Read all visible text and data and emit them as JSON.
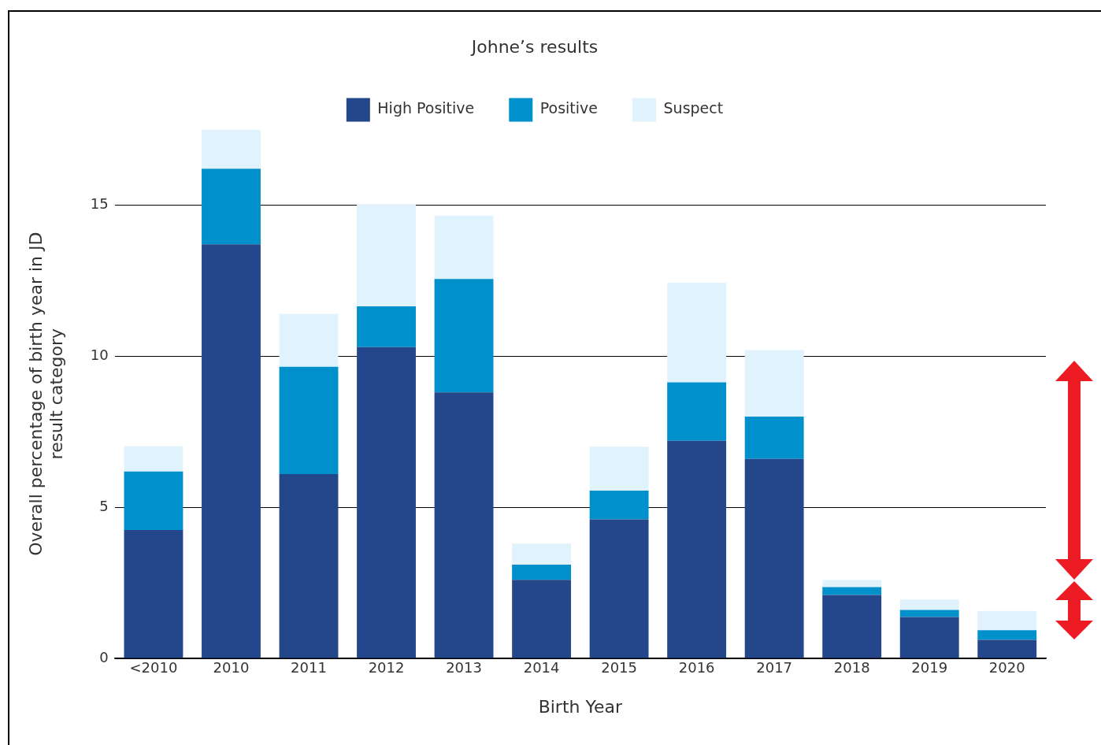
{
  "chart_data": {
    "type": "bar",
    "stacked": true,
    "legend_title": "Johne’s results",
    "legend": "top",
    "grid": "y",
    "xlabel": "Birth Year",
    "ylabel": "Overall percentage of birth year in JD result category",
    "categories": [
      "<2010",
      "2010",
      "2011",
      "2012",
      "2013",
      "2014",
      "2015",
      "2016",
      "2017",
      "2018",
      "2019",
      "2020"
    ],
    "ylim": [
      0,
      17.5
    ],
    "yticks": [
      0,
      5,
      10,
      15
    ],
    "series": [
      {
        "name": "High Positive",
        "color": "#24468a",
        "values": [
          4.25,
          13.7,
          6.1,
          10.3,
          8.8,
          2.6,
          4.6,
          7.2,
          6.6,
          2.1,
          1.37,
          0.61
        ]
      },
      {
        "name": "Positive",
        "color": "#0090cb",
        "values": [
          1.93,
          2.5,
          3.55,
          1.35,
          3.75,
          0.5,
          0.95,
          1.93,
          1.4,
          0.26,
          0.23,
          0.32
        ]
      },
      {
        "name": "Suspect",
        "color": "#e0f2fb",
        "values": [
          0.84,
          1.3,
          1.75,
          3.38,
          2.1,
          0.7,
          1.45,
          3.3,
          2.2,
          0.23,
          0.35,
          0.64
        ]
      }
    ]
  }
}
